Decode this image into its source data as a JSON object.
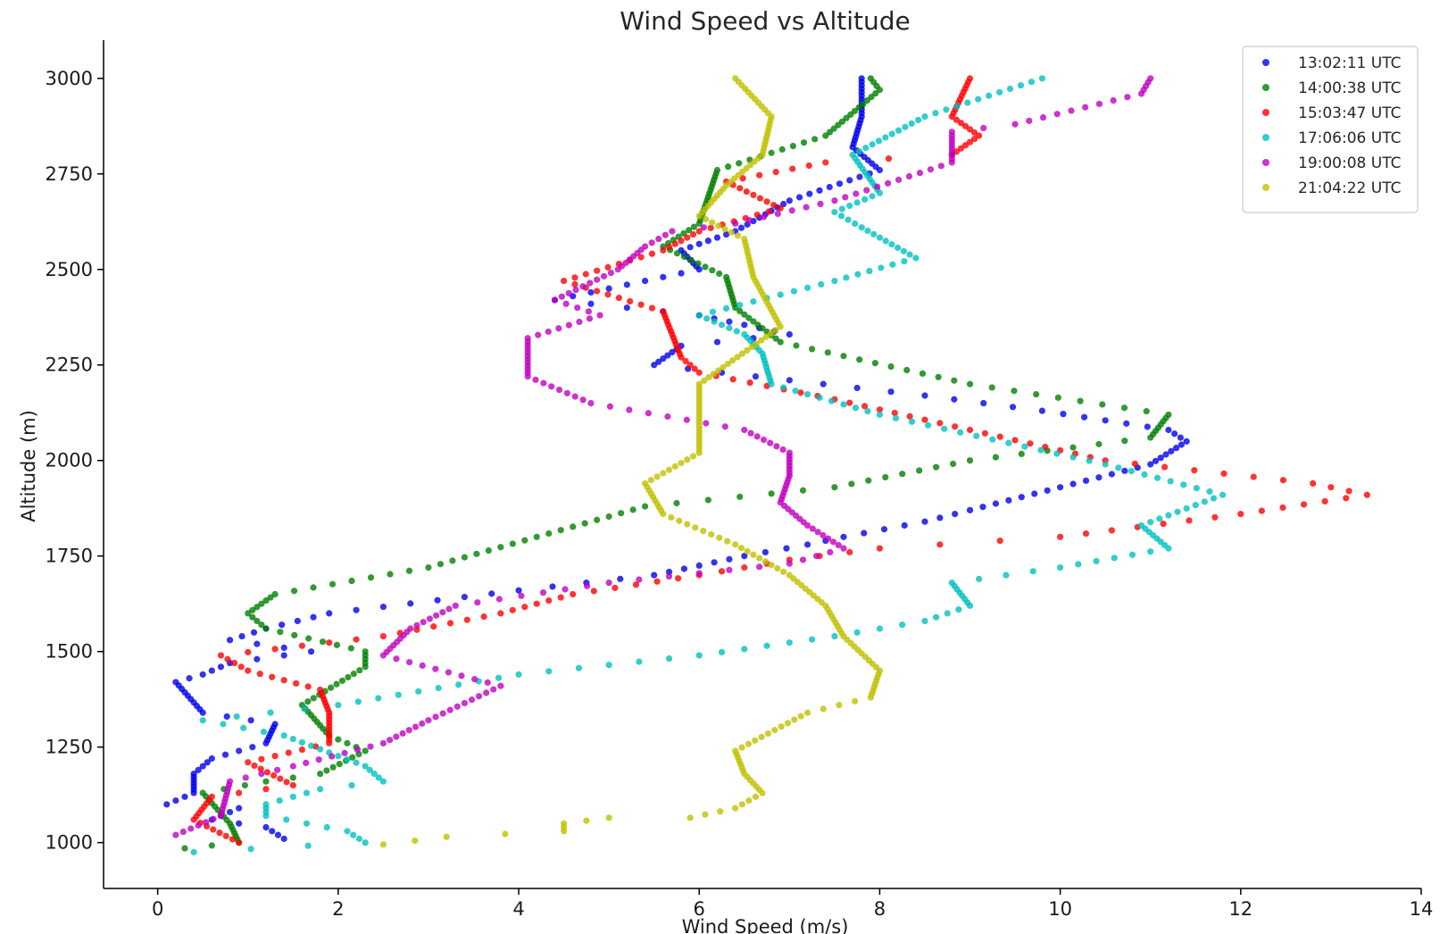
{
  "chart_data": {
    "type": "scatter",
    "title": "Wind Speed vs Altitude",
    "xlabel": "Wind Speed (m/s)",
    "ylabel": "Altitude (m)",
    "xlim": [
      -0.6,
      14
    ],
    "ylim": [
      880,
      3100
    ],
    "xticks": [
      0,
      2,
      4,
      6,
      8,
      10,
      12,
      14
    ],
    "yticks": [
      1000,
      1250,
      1500,
      1750,
      2000,
      2250,
      2500,
      2750,
      3000
    ],
    "grid": false,
    "legend_position": "top-right",
    "series": [
      {
        "name": "13:02:11 UTC",
        "color": "#0000ee",
        "points": [
          [
            1.4,
            1010
          ],
          [
            1.2,
            1040
          ],
          [
            0.6,
            1060
          ],
          [
            0.9,
            1090
          ],
          [
            0.1,
            1100
          ],
          [
            0.4,
            1130
          ],
          [
            0.4,
            1180
          ],
          [
            0.6,
            1220
          ],
          [
            1.2,
            1260
          ],
          [
            1.3,
            1310
          ],
          [
            0.5,
            1340
          ],
          [
            0.2,
            1420
          ],
          [
            0.5,
            1440
          ],
          [
            0.8,
            1470
          ],
          [
            1.7,
            1500
          ],
          [
            0.8,
            1530
          ],
          [
            1.2,
            1560
          ],
          [
            1.9,
            1600
          ],
          [
            4.0,
            1660
          ],
          [
            5.5,
            1700
          ],
          [
            6.5,
            1750
          ],
          [
            7.2,
            1780
          ],
          [
            7.6,
            1800
          ],
          [
            8.5,
            1840
          ],
          [
            9.0,
            1870
          ],
          [
            10.0,
            1930
          ],
          [
            11.0,
            1990
          ],
          [
            11.4,
            2050
          ],
          [
            11.2,
            2080
          ],
          [
            9.8,
            2130
          ],
          [
            8.5,
            2170
          ],
          [
            7.0,
            2210
          ],
          [
            5.5,
            2250
          ],
          [
            5.8,
            2300
          ],
          [
            7.0,
            2330
          ],
          [
            6.0,
            2380
          ],
          [
            4.4,
            2420
          ],
          [
            5.2,
            2460
          ],
          [
            6.0,
            2500
          ],
          [
            5.8,
            2550
          ],
          [
            6.4,
            2600
          ],
          [
            7.0,
            2680
          ],
          [
            8.0,
            2760
          ],
          [
            7.7,
            2820
          ],
          [
            7.8,
            2900
          ],
          [
            7.8,
            3000
          ]
        ]
      },
      {
        "name": "14:00:38 UTC",
        "color": "#008000",
        "points": [
          [
            0.3,
            985
          ],
          [
            0.9,
            1000
          ],
          [
            0.8,
            1050
          ],
          [
            0.5,
            1130
          ],
          [
            1.2,
            1160
          ],
          [
            1.8,
            1180
          ],
          [
            2.3,
            1240
          ],
          [
            1.9,
            1280
          ],
          [
            1.6,
            1360
          ],
          [
            2.3,
            1460
          ],
          [
            2.3,
            1500
          ],
          [
            1.2,
            1560
          ],
          [
            1.0,
            1600
          ],
          [
            1.3,
            1650
          ],
          [
            3.0,
            1720
          ],
          [
            5.4,
            1880
          ],
          [
            7.5,
            1930
          ],
          [
            9.0,
            2000
          ],
          [
            11.0,
            2060
          ],
          [
            11.2,
            2120
          ],
          [
            9.0,
            2200
          ],
          [
            6.9,
            2310
          ],
          [
            6.4,
            2400
          ],
          [
            6.3,
            2480
          ],
          [
            5.6,
            2560
          ],
          [
            6.0,
            2620
          ],
          [
            6.2,
            2760
          ],
          [
            7.4,
            2850
          ],
          [
            8.0,
            2970
          ],
          [
            7.9,
            3000
          ]
        ]
      },
      {
        "name": "15:03:47 UTC",
        "color": "#ff0000",
        "points": [
          [
            0.9,
            1000
          ],
          [
            0.4,
            1060
          ],
          [
            0.6,
            1120
          ],
          [
            1.5,
            1150
          ],
          [
            1.0,
            1210
          ],
          [
            1.9,
            1260
          ],
          [
            1.9,
            1340
          ],
          [
            1.8,
            1400
          ],
          [
            1.0,
            1450
          ],
          [
            0.7,
            1490
          ],
          [
            2.5,
            1540
          ],
          [
            3.8,
            1600
          ],
          [
            4.6,
            1650
          ],
          [
            6.0,
            1700
          ],
          [
            7.0,
            1740
          ],
          [
            8.0,
            1770
          ],
          [
            10.0,
            1800
          ],
          [
            12.0,
            1860
          ],
          [
            13.4,
            1910
          ],
          [
            12.8,
            1940
          ],
          [
            10.5,
            2000
          ],
          [
            9.0,
            2080
          ],
          [
            7.5,
            2160
          ],
          [
            6.0,
            2230
          ],
          [
            5.8,
            2270
          ],
          [
            5.7,
            2330
          ],
          [
            5.6,
            2390
          ],
          [
            4.5,
            2470
          ],
          [
            5.6,
            2550
          ],
          [
            6.0,
            2600
          ],
          [
            6.9,
            2660
          ],
          [
            6.3,
            2730
          ],
          [
            7.4,
            2780
          ],
          [
            8.8,
            2800
          ],
          [
            9.1,
            2850
          ],
          [
            8.8,
            2900
          ],
          [
            9.0,
            3000
          ]
        ]
      },
      {
        "name": "17:06:06 UTC",
        "color": "#00c0c0",
        "points": [
          [
            0.4,
            975
          ],
          [
            2.3,
            1000
          ],
          [
            2.1,
            1030
          ],
          [
            1.2,
            1070
          ],
          [
            1.2,
            1100
          ],
          [
            1.8,
            1140
          ],
          [
            2.5,
            1160
          ],
          [
            2.3,
            1200
          ],
          [
            1.4,
            1280
          ],
          [
            0.5,
            1320
          ],
          [
            2.0,
            1360
          ],
          [
            4.0,
            1440
          ],
          [
            6.0,
            1490
          ],
          [
            7.5,
            1540
          ],
          [
            8.5,
            1580
          ],
          [
            9.0,
            1620
          ],
          [
            8.8,
            1680
          ],
          [
            10.0,
            1720
          ],
          [
            11.2,
            1770
          ],
          [
            10.9,
            1830
          ],
          [
            11.8,
            1910
          ],
          [
            10.5,
            1990
          ],
          [
            8.0,
            2120
          ],
          [
            6.8,
            2200
          ],
          [
            6.7,
            2280
          ],
          [
            6.5,
            2330
          ],
          [
            6.0,
            2380
          ],
          [
            7.5,
            2470
          ],
          [
            8.4,
            2530
          ],
          [
            7.8,
            2610
          ],
          [
            7.5,
            2650
          ],
          [
            8.0,
            2700
          ],
          [
            7.7,
            2800
          ],
          [
            8.5,
            2900
          ],
          [
            9.8,
            3000
          ]
        ]
      },
      {
        "name": "19:00:08 UTC",
        "color": "#c000c0",
        "points": [
          [
            0.2,
            1020
          ],
          [
            0.7,
            1070
          ],
          [
            0.8,
            1160
          ],
          [
            1.5,
            1200
          ],
          [
            2.5,
            1260
          ],
          [
            3.0,
            1320
          ],
          [
            3.8,
            1410
          ],
          [
            2.5,
            1490
          ],
          [
            2.8,
            1560
          ],
          [
            3.3,
            1620
          ],
          [
            5.0,
            1680
          ],
          [
            7.0,
            1730
          ],
          [
            7.6,
            1770
          ],
          [
            7.2,
            1830
          ],
          [
            6.9,
            1890
          ],
          [
            7.0,
            1960
          ],
          [
            7.0,
            2020
          ],
          [
            6.5,
            2080
          ],
          [
            4.8,
            2150
          ],
          [
            4.1,
            2220
          ],
          [
            4.1,
            2320
          ],
          [
            4.9,
            2380
          ],
          [
            4.4,
            2420
          ],
          [
            5.1,
            2500
          ],
          [
            5.4,
            2560
          ],
          [
            5.7,
            2600
          ],
          [
            6.4,
            2620
          ],
          [
            7.5,
            2680
          ],
          [
            8.8,
            2780
          ],
          [
            8.8,
            2860
          ],
          [
            9.5,
            2880
          ],
          [
            10.9,
            2960
          ],
          [
            11.0,
            3000
          ]
        ]
      },
      {
        "name": "21:04:22 UTC",
        "color": "#c0c000",
        "points": [
          [
            2.5,
            995
          ],
          [
            3.2,
            1015
          ],
          [
            4.5,
            1030
          ],
          [
            4.5,
            1050
          ],
          [
            5.0,
            1065
          ],
          [
            5.9,
            1065
          ],
          [
            6.4,
            1090
          ],
          [
            6.7,
            1130
          ],
          [
            6.5,
            1180
          ],
          [
            6.4,
            1240
          ],
          [
            7.2,
            1340
          ],
          [
            7.9,
            1380
          ],
          [
            8.0,
            1450
          ],
          [
            7.6,
            1540
          ],
          [
            7.4,
            1620
          ],
          [
            7.0,
            1700
          ],
          [
            6.4,
            1780
          ],
          [
            5.6,
            1860
          ],
          [
            5.4,
            1940
          ],
          [
            6.0,
            2020
          ],
          [
            6.0,
            2200
          ],
          [
            6.9,
            2350
          ],
          [
            6.6,
            2480
          ],
          [
            6.5,
            2580
          ],
          [
            6.0,
            2640
          ],
          [
            6.3,
            2720
          ],
          [
            6.7,
            2800
          ],
          [
            6.8,
            2900
          ],
          [
            6.4,
            3000
          ]
        ]
      }
    ]
  }
}
